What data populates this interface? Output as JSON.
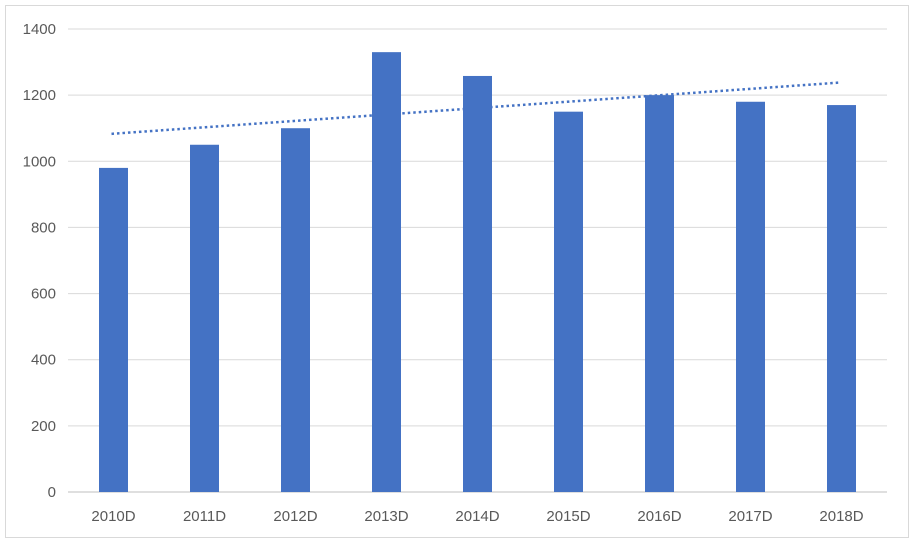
{
  "chart_data": {
    "type": "bar",
    "title": "",
    "xlabel": "",
    "ylabel": "",
    "categories": [
      "2010D",
      "2011D",
      "2012D",
      "2013D",
      "2014D",
      "2015D",
      "2016D",
      "2017D",
      "2018D"
    ],
    "values": [
      980,
      1050,
      1100,
      1330,
      1258,
      1150,
      1200,
      1180,
      1170
    ],
    "ylim": [
      0,
      1400
    ],
    "yticks": [
      0,
      200,
      400,
      600,
      800,
      1000,
      1200,
      1400
    ],
    "grid": true,
    "legend": "none",
    "trendline": {
      "type": "linear",
      "style": "dotted",
      "start": 1083,
      "end": 1238
    },
    "colors": {
      "bar": "#4472c4",
      "trendline": "#4472c4",
      "grid": "#d9d9d9",
      "axis": "#bfbfbf",
      "text": "#595959"
    }
  }
}
